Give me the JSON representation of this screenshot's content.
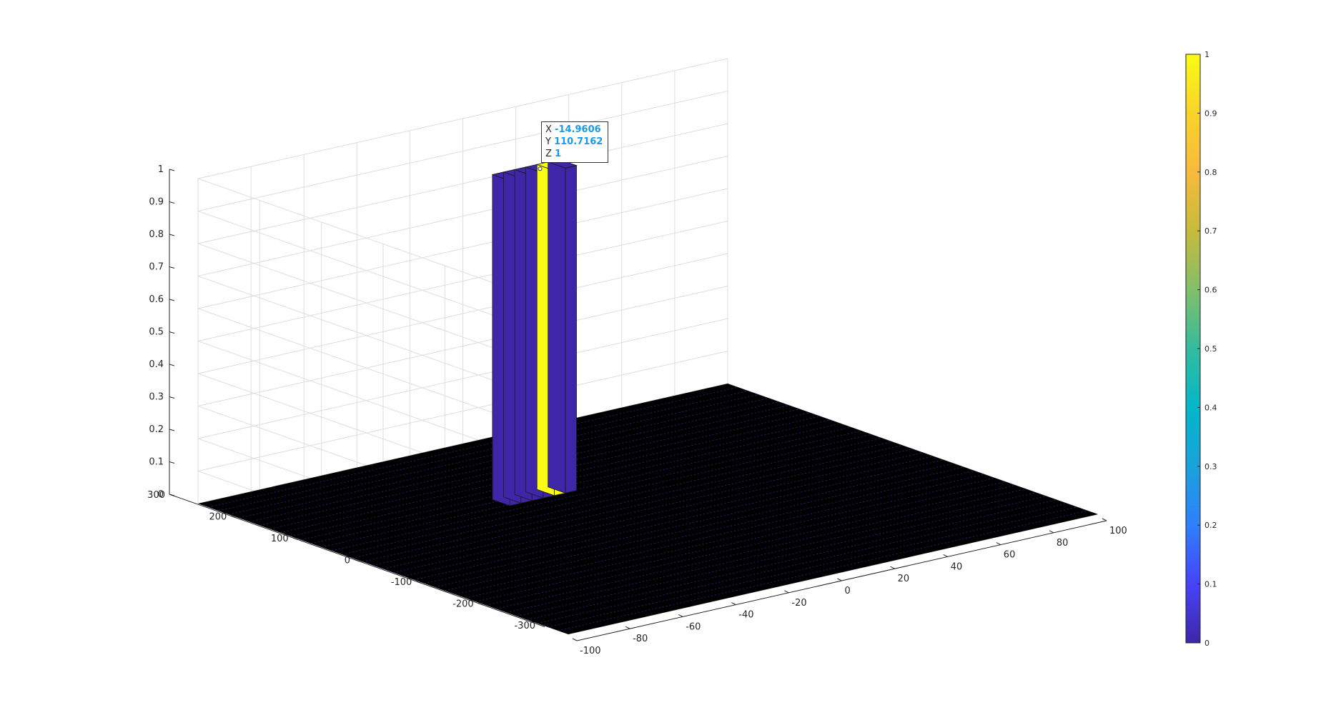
{
  "chart_data": {
    "type": "bar3",
    "x_ticks": [
      "-100",
      "-80",
      "-60",
      "-40",
      "-20",
      "0",
      "20",
      "40",
      "60",
      "80",
      "100"
    ],
    "y_ticks": [
      "-300",
      "-200",
      "-100",
      "0",
      "100",
      "200",
      "300"
    ],
    "z_ticks": [
      "0",
      "0.1",
      "0.2",
      "0.3",
      "0.4",
      "0.5",
      "0.6",
      "0.7",
      "0.8",
      "0.9",
      "1"
    ],
    "xlim": [
      -100,
      100
    ],
    "ylim": [
      -300,
      300
    ],
    "zlim": [
      0,
      1
    ],
    "grid": true,
    "floor_value": 0,
    "peak": {
      "x": -14.9606,
      "y": 110.7162,
      "z": 1
    },
    "colormap": "parula",
    "colorbar": {
      "ticks": [
        "0",
        "0.1",
        "0.2",
        "0.3",
        "0.4",
        "0.5",
        "0.6",
        "0.7",
        "0.8",
        "0.9",
        "1"
      ],
      "range": [
        0,
        1
      ],
      "colors": [
        "#3e26a8",
        "#4743f8",
        "#2f80fb",
        "#1aa2db",
        "#04b6c8",
        "#33bc9e",
        "#83be6a",
        "#c7bb3c",
        "#f7ba3d",
        "#f9d32a",
        "#f9fb15"
      ]
    },
    "datatip": {
      "x_label": "X",
      "x_value": "-14.9606",
      "y_label": "Y",
      "y_value": "110.7162",
      "z_label": "Z",
      "z_value": "1"
    },
    "colors": {
      "bar_face": "#3e26a8",
      "bar_highlight": "#f9fb15",
      "floor": "#000000",
      "edge": "#1a1a1a"
    }
  }
}
